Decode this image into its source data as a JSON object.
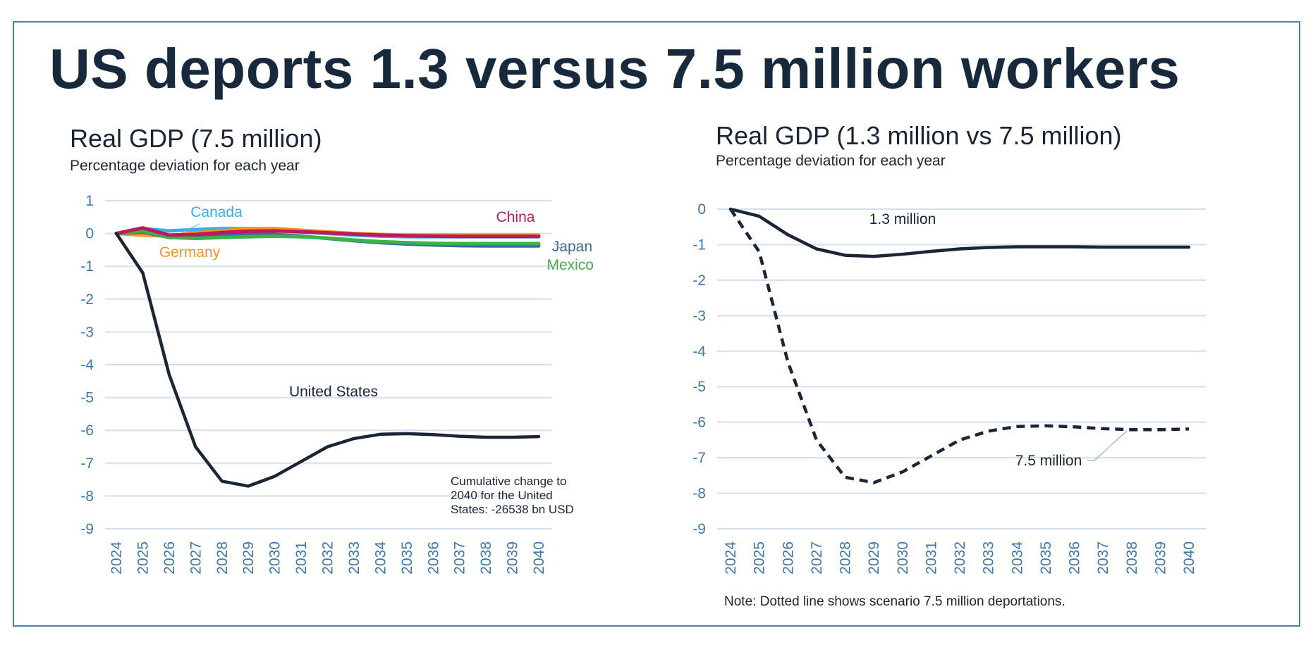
{
  "title": "US deports 1.3 versus 7.5 million workers",
  "chart_data": [
    {
      "type": "line",
      "title": "Real GDP (7.5 million)",
      "subtitle": "Percentage deviation for each year",
      "x": [
        "2024",
        "2025",
        "2026",
        "2027",
        "2028",
        "2029",
        "2030",
        "2031",
        "2032",
        "2033",
        "2034",
        "2035",
        "2036",
        "2037",
        "2038",
        "2039",
        "2040"
      ],
      "ylim": [
        -9,
        1
      ],
      "yticks": [
        "1",
        "0",
        "-1",
        "-2",
        "-3",
        "-4",
        "-5",
        "-6",
        "-7",
        "-8",
        "-9"
      ],
      "grid": true,
      "series": [
        {
          "name": "Canada",
          "color": "#3aaee8",
          "values": [
            0,
            0.15,
            0.08,
            0.12,
            0.15,
            0.15,
            0.12,
            0.05,
            0,
            -0.05,
            -0.08,
            -0.1,
            -0.1,
            -0.1,
            -0.1,
            -0.1,
            -0.1
          ]
        },
        {
          "name": "Germany",
          "color": "#f7941d",
          "values": [
            0,
            -0.05,
            -0.08,
            0.02,
            0.08,
            0.15,
            0.15,
            0.1,
            0.05,
            0,
            -0.03,
            -0.05,
            -0.05,
            -0.05,
            -0.05,
            -0.05,
            -0.05
          ]
        },
        {
          "name": "Japan",
          "color": "#3a6a9a",
          "values": [
            0,
            0.05,
            -0.12,
            -0.1,
            -0.05,
            0,
            -0.03,
            -0.08,
            -0.15,
            -0.22,
            -0.28,
            -0.32,
            -0.35,
            -0.37,
            -0.38,
            -0.38,
            -0.38
          ]
        },
        {
          "name": "Mexico",
          "color": "#3cb34a",
          "values": [
            0,
            0.08,
            -0.12,
            -0.15,
            -0.12,
            -0.1,
            -0.08,
            -0.1,
            -0.14,
            -0.2,
            -0.25,
            -0.28,
            -0.3,
            -0.31,
            -0.31,
            -0.31,
            -0.31
          ]
        },
        {
          "name": "China",
          "color": "#c0185a",
          "values": [
            0,
            0.17,
            -0.05,
            -0.03,
            0.03,
            0.07,
            0.08,
            0.05,
            0.02,
            -0.02,
            -0.05,
            -0.07,
            -0.08,
            -0.09,
            -0.09,
            -0.09,
            -0.09
          ]
        },
        {
          "name": "United States",
          "color": "#1a2535",
          "values": [
            0,
            -1.2,
            -4.3,
            -6.5,
            -7.55,
            -7.7,
            -7.4,
            -6.95,
            -6.5,
            -6.25,
            -6.12,
            -6.1,
            -6.13,
            -6.18,
            -6.21,
            -6.21,
            -6.19
          ]
        }
      ],
      "annotation": [
        "Cumulative change to",
        "2040 for the United",
        "States: -26538 bn USD"
      ]
    },
    {
      "type": "line",
      "title": "Real GDP (1.3 million vs 7.5 million)",
      "subtitle": "Percentage deviation for each year",
      "x": [
        "2024",
        "2025",
        "2026",
        "2027",
        "2028",
        "2029",
        "2030",
        "2031",
        "2032",
        "2033",
        "2034",
        "2035",
        "2036",
        "2037",
        "2038",
        "2039",
        "2040"
      ],
      "ylim": [
        -9,
        0
      ],
      "yticks": [
        "0",
        "-1",
        "-2",
        "-3",
        "-4",
        "-5",
        "-6",
        "-7",
        "-8",
        "-9"
      ],
      "grid": true,
      "series": [
        {
          "name": "1.3 million",
          "color": "#1a2535",
          "style": "solid",
          "values": [
            0,
            -0.2,
            -0.72,
            -1.12,
            -1.3,
            -1.33,
            -1.27,
            -1.19,
            -1.12,
            -1.08,
            -1.06,
            -1.06,
            -1.06,
            -1.07,
            -1.07,
            -1.07,
            -1.07
          ]
        },
        {
          "name": "7.5 million",
          "color": "#1a2535",
          "style": "dashed",
          "values": [
            0,
            -1.2,
            -4.3,
            -6.5,
            -7.55,
            -7.7,
            -7.4,
            -6.95,
            -6.5,
            -6.25,
            -6.12,
            -6.1,
            -6.13,
            -6.18,
            -6.21,
            -6.21,
            -6.19
          ]
        }
      ],
      "note": "Note: Dotted line shows scenario 7.5 million deportations."
    }
  ]
}
